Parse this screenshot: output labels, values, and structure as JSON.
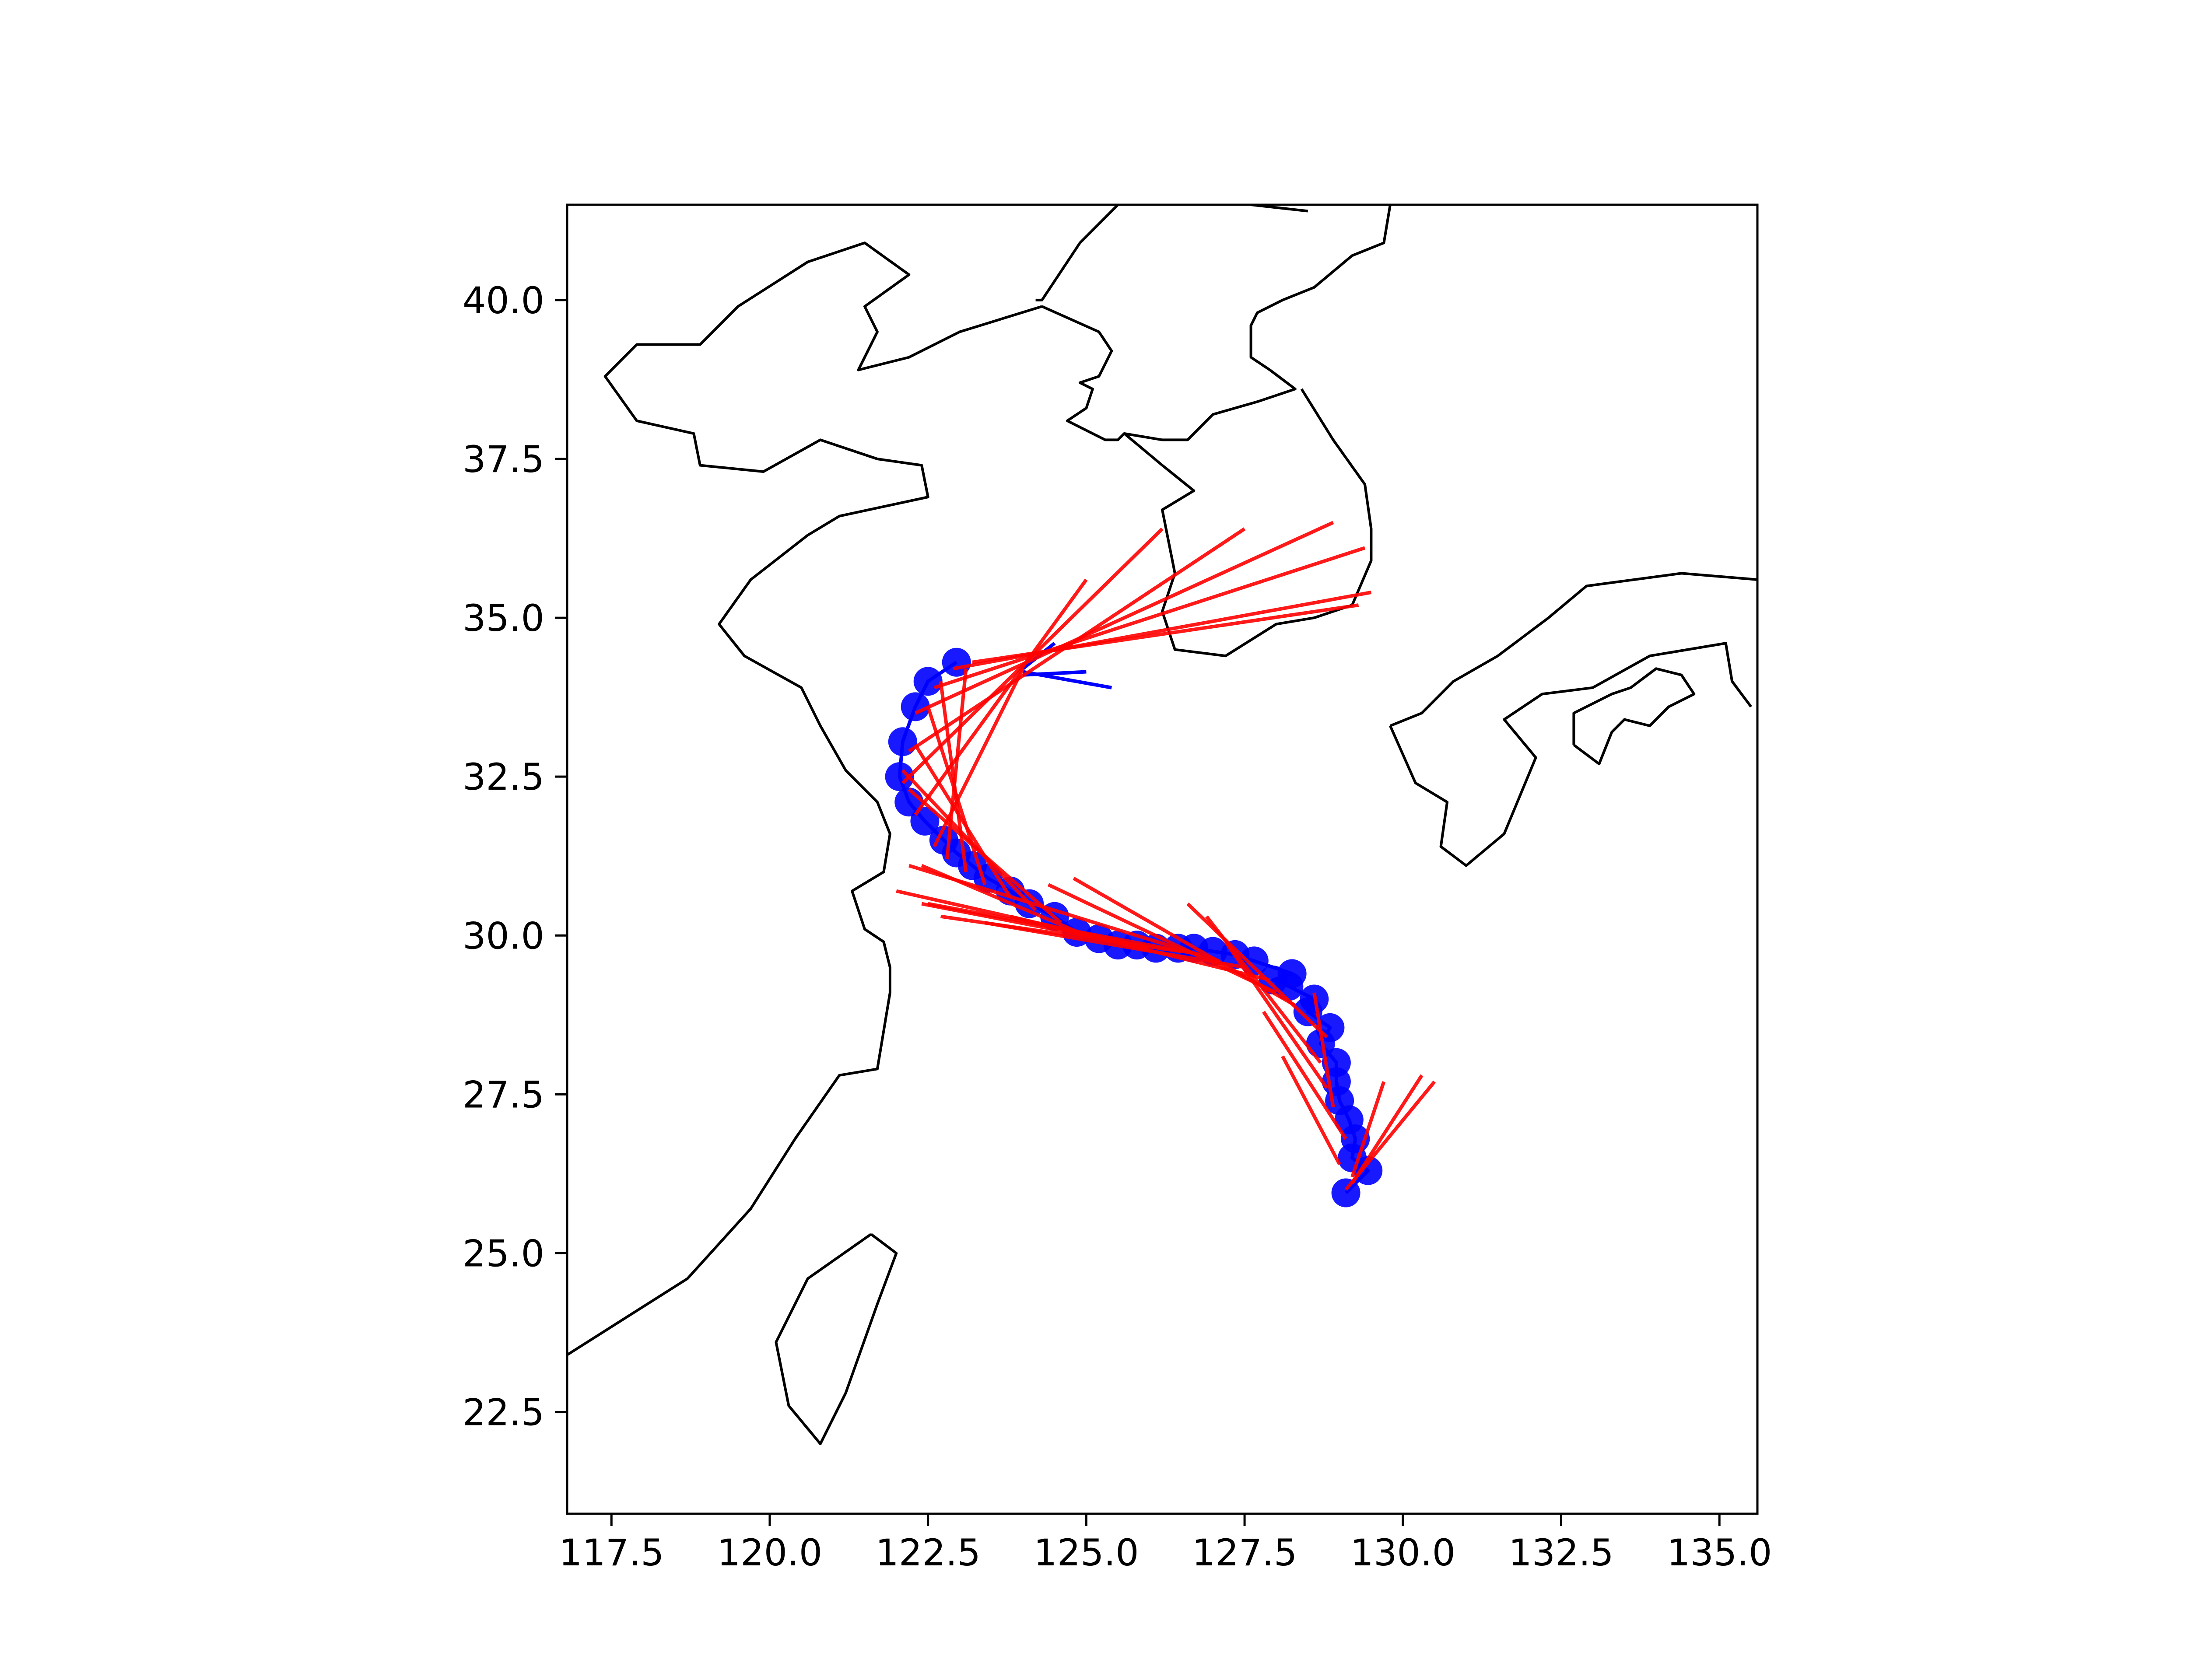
{
  "chart_data": {
    "type": "map",
    "title": "",
    "xlabel": "",
    "ylabel": "",
    "xlim": [
      116.8,
      135.6
    ],
    "ylim": [
      20.9,
      41.5
    ],
    "grid": false,
    "legend": "none",
    "x_ticks": [
      117.5,
      120.0,
      122.5,
      125.0,
      127.5,
      130.0,
      132.5,
      135.0
    ],
    "x_tick_labels": [
      "117.5",
      "120.0",
      "122.5",
      "125.0",
      "127.5",
      "130.0",
      "132.5",
      "135.0"
    ],
    "y_ticks": [
      22.5,
      25.0,
      27.5,
      30.0,
      32.5,
      35.0,
      37.5,
      40.0
    ],
    "y_tick_labels": [
      "22.5",
      "25.0",
      "27.5",
      "30.0",
      "32.5",
      "35.0",
      "37.5",
      "40.0"
    ],
    "colors": {
      "coastline": "#000000",
      "observed_track": "#0000ff",
      "forecast_tracks": "#ff0000",
      "axes": "#000000",
      "background": "#ffffff"
    },
    "coastlines": [
      {
        "name": "china-coast",
        "points": [
          [
            116.8,
            23.4
          ],
          [
            118.7,
            24.6
          ],
          [
            119.7,
            25.7
          ],
          [
            120.4,
            26.8
          ],
          [
            121.1,
            27.8
          ],
          [
            121.7,
            27.9
          ],
          [
            121.8,
            28.5
          ],
          [
            121.9,
            29.1
          ],
          [
            121.9,
            29.5
          ],
          [
            121.8,
            29.9
          ],
          [
            121.5,
            30.1
          ],
          [
            121.3,
            30.7
          ],
          [
            121.8,
            31.0
          ],
          [
            121.9,
            31.6
          ],
          [
            121.7,
            32.1
          ],
          [
            121.2,
            32.6
          ],
          [
            120.8,
            33.3
          ],
          [
            120.5,
            33.9
          ],
          [
            119.6,
            34.4
          ],
          [
            119.2,
            34.9
          ],
          [
            119.7,
            35.6
          ],
          [
            120.6,
            36.3
          ],
          [
            121.1,
            36.6
          ],
          [
            122.5,
            36.9
          ],
          [
            122.4,
            37.4
          ],
          [
            121.7,
            37.5
          ],
          [
            120.8,
            37.8
          ],
          [
            119.9,
            37.3
          ],
          [
            118.9,
            37.4
          ],
          [
            118.8,
            37.9
          ],
          [
            117.9,
            38.1
          ],
          [
            117.4,
            38.8
          ],
          [
            117.9,
            39.3
          ],
          [
            118.9,
            39.3
          ],
          [
            119.5,
            39.9
          ],
          [
            120.6,
            40.6
          ],
          [
            121.5,
            40.9
          ],
          [
            122.2,
            40.4
          ],
          [
            121.5,
            39.9
          ],
          [
            121.7,
            39.5
          ],
          [
            121.4,
            38.9
          ],
          [
            122.2,
            39.1
          ],
          [
            123.0,
            39.5
          ],
          [
            124.3,
            39.9
          ]
        ]
      },
      {
        "name": "korea-west-coast",
        "points": [
          [
            124.3,
            39.9
          ],
          [
            125.2,
            39.5
          ],
          [
            125.4,
            39.2
          ],
          [
            125.2,
            38.8
          ],
          [
            124.9,
            38.7
          ],
          [
            125.1,
            38.6
          ],
          [
            125.0,
            38.3
          ],
          [
            124.7,
            38.1
          ],
          [
            125.1,
            37.9
          ],
          [
            125.3,
            37.8
          ],
          [
            125.5,
            37.8
          ],
          [
            125.6,
            37.9
          ],
          [
            126.2,
            37.8
          ],
          [
            126.6,
            37.8
          ],
          [
            127.0,
            38.2
          ],
          [
            127.7,
            38.4
          ],
          [
            128.3,
            38.6
          ],
          [
            127.9,
            38.9
          ],
          [
            127.6,
            39.1
          ],
          [
            127.6,
            39.4
          ],
          [
            127.6,
            39.6
          ],
          [
            127.7,
            39.8
          ],
          [
            128.1,
            40.0
          ],
          [
            128.6,
            40.2
          ],
          [
            129.2,
            40.7
          ],
          [
            129.7,
            40.9
          ],
          [
            129.8,
            41.5
          ]
        ]
      },
      {
        "name": "korea-south-coast",
        "points": [
          [
            125.6,
            37.9
          ],
          [
            126.2,
            37.4
          ],
          [
            126.7,
            37.0
          ],
          [
            126.2,
            36.7
          ],
          [
            126.4,
            35.7
          ],
          [
            126.2,
            35.1
          ],
          [
            126.4,
            34.5
          ],
          [
            127.2,
            34.4
          ],
          [
            128.0,
            34.9
          ],
          [
            128.6,
            35.0
          ],
          [
            129.2,
            35.2
          ],
          [
            129.5,
            35.9
          ],
          [
            129.5,
            36.4
          ],
          [
            129.4,
            37.1
          ],
          [
            128.9,
            37.8
          ],
          [
            128.4,
            38.6
          ]
        ]
      },
      {
        "name": "korea-china-border",
        "points": [
          [
            125.5,
            41.5
          ],
          [
            124.9,
            40.9
          ],
          [
            124.3,
            40.0
          ],
          [
            124.2,
            40.0
          ]
        ]
      },
      {
        "name": "border-fragment",
        "points": [
          [
            127.6,
            41.5
          ],
          [
            128.5,
            41.4
          ]
        ]
      },
      {
        "name": "japan-kyushu",
        "points": [
          [
            129.8,
            33.3
          ],
          [
            130.2,
            32.4
          ],
          [
            130.7,
            32.1
          ],
          [
            130.6,
            31.4
          ],
          [
            131.0,
            31.1
          ],
          [
            131.6,
            31.6
          ],
          [
            132.1,
            32.8
          ],
          [
            131.6,
            33.4
          ],
          [
            132.2,
            33.8
          ],
          [
            133.0,
            33.9
          ],
          [
            133.9,
            34.4
          ],
          [
            135.1,
            34.6
          ],
          [
            135.2,
            34.0
          ],
          [
            135.5,
            33.6
          ]
        ]
      },
      {
        "name": "japan-kyushu-north",
        "points": [
          [
            129.8,
            33.3
          ],
          [
            130.3,
            33.5
          ],
          [
            130.8,
            34.0
          ],
          [
            131.5,
            34.4
          ],
          [
            132.3,
            35.0
          ],
          [
            132.9,
            35.5
          ],
          [
            134.4,
            35.7
          ],
          [
            135.6,
            35.6
          ]
        ]
      },
      {
        "name": "japan-shikoku",
        "points": [
          [
            132.7,
            33.0
          ],
          [
            132.7,
            33.5
          ],
          [
            133.3,
            33.8
          ],
          [
            133.6,
            33.9
          ],
          [
            134.0,
            34.2
          ],
          [
            134.4,
            34.1
          ],
          [
            134.6,
            33.8
          ],
          [
            134.2,
            33.6
          ],
          [
            133.9,
            33.3
          ],
          [
            133.5,
            33.4
          ],
          [
            133.3,
            33.2
          ],
          [
            133.1,
            32.7
          ],
          [
            132.7,
            33.0
          ]
        ]
      },
      {
        "name": "taiwan",
        "points": [
          [
            121.6,
            25.3
          ],
          [
            122.0,
            25.0
          ],
          [
            121.7,
            24.2
          ],
          [
            121.2,
            22.8
          ],
          [
            120.8,
            22.0
          ],
          [
            120.3,
            22.6
          ],
          [
            120.1,
            23.6
          ],
          [
            120.6,
            24.6
          ],
          [
            121.6,
            25.3
          ]
        ]
      }
    ],
    "series": [
      {
        "type": "scatter-line",
        "points": [
          [
            129.1,
            25.95
          ],
          [
            129.45,
            26.3
          ],
          [
            129.2,
            26.5
          ],
          [
            129.25,
            26.8
          ],
          [
            129.15,
            27.1
          ],
          [
            129.0,
            27.4
          ],
          [
            128.95,
            27.7
          ],
          [
            128.95,
            28.0
          ],
          [
            128.7,
            28.3
          ],
          [
            128.85,
            28.55
          ],
          [
            128.5,
            28.8
          ],
          [
            128.6,
            29.0
          ],
          [
            128.2,
            29.2
          ],
          [
            127.95,
            29.3
          ],
          [
            128.25,
            29.4
          ],
          [
            127.65,
            29.6
          ],
          [
            127.35,
            29.7
          ],
          [
            127.0,
            29.75
          ],
          [
            126.7,
            29.8
          ],
          [
            126.45,
            29.8
          ],
          [
            126.1,
            29.8
          ],
          [
            125.8,
            29.85
          ],
          [
            125.5,
            29.85
          ],
          [
            125.2,
            29.95
          ],
          [
            124.85,
            30.05
          ],
          [
            124.5,
            30.3
          ],
          [
            124.1,
            30.5
          ],
          [
            123.8,
            30.7
          ],
          [
            123.45,
            30.9
          ],
          [
            123.2,
            31.1
          ],
          [
            122.95,
            31.3
          ],
          [
            122.75,
            31.5
          ],
          [
            122.45,
            31.8
          ],
          [
            122.2,
            32.1
          ],
          [
            122.05,
            32.5
          ],
          [
            122.1,
            33.05
          ],
          [
            122.3,
            33.6
          ],
          [
            122.5,
            34.0
          ],
          [
            122.95,
            34.3
          ]
        ]
      },
      {
        "type": "track-segments",
        "segments": [
          [
            [
              124.0,
              34.2
            ],
            [
              124.5,
              34.6
            ]
          ],
          [
            [
              124.0,
              34.15
            ],
            [
              125.4,
              33.9
            ]
          ],
          [
            [
              124.0,
              34.1
            ],
            [
              125.0,
              34.15
            ]
          ]
        ]
      },
      {
        "type": "forecast-segments",
        "segments": [
          [
            [
              129.1,
              26.0
            ],
            [
              130.5,
              27.7
            ]
          ],
          [
            [
              129.2,
              26.1
            ],
            [
              130.3,
              27.8
            ]
          ],
          [
            [
              129.2,
              26.2
            ],
            [
              129.7,
              27.7
            ]
          ],
          [
            [
              129.0,
              26.4
            ],
            [
              128.1,
              28.1
            ]
          ],
          [
            [
              129.1,
              26.8
            ],
            [
              127.8,
              28.8
            ]
          ],
          [
            [
              128.9,
              27.3
            ],
            [
              128.6,
              29.1
            ]
          ],
          [
            [
              128.8,
              27.6
            ],
            [
              127.2,
              29.9
            ]
          ],
          [
            [
              128.7,
              28.0
            ],
            [
              126.9,
              30.3
            ]
          ],
          [
            [
              128.8,
              28.4
            ],
            [
              126.6,
              30.5
            ]
          ],
          [
            [
              128.3,
              28.9
            ],
            [
              124.8,
              30.9
            ]
          ],
          [
            [
              128.0,
              29.1
            ],
            [
              124.4,
              30.8
            ]
          ],
          [
            [
              127.9,
              29.3
            ],
            [
              123.8,
              30.3
            ]
          ],
          [
            [
              127.5,
              29.5
            ],
            [
              123.4,
              30.2
            ]
          ],
          [
            [
              127.1,
              29.6
            ],
            [
              122.2,
              31.1
            ]
          ],
          [
            [
              126.8,
              29.7
            ],
            [
              122.5,
              30.5
            ]
          ],
          [
            [
              126.5,
              29.75
            ],
            [
              122.7,
              30.3
            ]
          ],
          [
            [
              126.0,
              29.8
            ],
            [
              122.0,
              30.7
            ]
          ],
          [
            [
              125.5,
              29.9
            ],
            [
              122.4,
              30.5
            ]
          ],
          [
            [
              125.0,
              30.0
            ],
            [
              122.4,
              31.1
            ]
          ],
          [
            [
              124.6,
              30.2
            ],
            [
              122.2,
              32.3
            ]
          ],
          [
            [
              124.2,
              30.4
            ],
            [
              122.1,
              32.6
            ]
          ],
          [
            [
              123.8,
              30.6
            ],
            [
              122.3,
              33.0
            ]
          ],
          [
            [
              123.4,
              30.8
            ],
            [
              122.5,
              33.6
            ]
          ],
          [
            [
              123.1,
              31.0
            ],
            [
              122.7,
              34.0
            ]
          ],
          [
            [
              122.8,
              31.2
            ],
            [
              123.1,
              34.2
            ]
          ],
          [
            [
              122.6,
              31.4
            ],
            [
              124.0,
              34.2
            ]
          ],
          [
            [
              122.3,
              31.9
            ],
            [
              125.0,
              35.6
            ]
          ],
          [
            [
              122.1,
              32.4
            ],
            [
              126.2,
              36.4
            ]
          ],
          [
            [
              122.2,
              32.9
            ],
            [
              127.5,
              36.4
            ]
          ],
          [
            [
              122.3,
              33.5
            ],
            [
              128.9,
              36.5
            ]
          ],
          [
            [
              122.6,
              33.9
            ],
            [
              129.4,
              36.1
            ]
          ],
          [
            [
              122.9,
              34.2
            ],
            [
              129.5,
              35.4
            ]
          ],
          [
            [
              123.2,
              34.3
            ],
            [
              129.3,
              35.2
            ]
          ]
        ]
      }
    ]
  }
}
